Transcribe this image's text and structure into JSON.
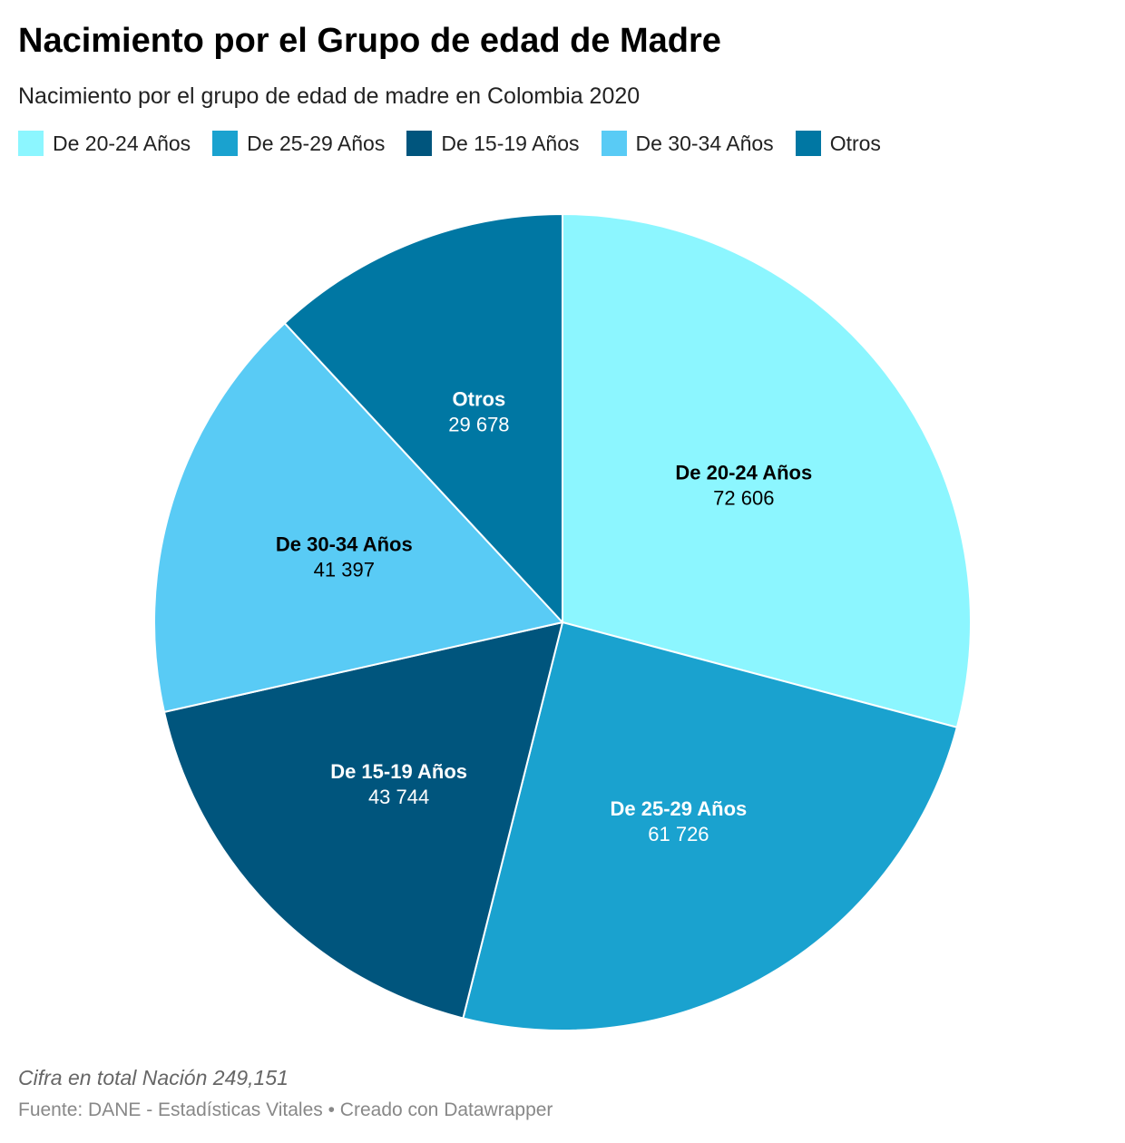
{
  "title": "Nacimiento por el Grupo de edad de Madre",
  "subtitle": "Nacimiento por el grupo de edad de madre en Colombia 2020",
  "note": "Cifra en total Nación 249,151",
  "footer": {
    "source": "Fuente: DANE - Estadísticas Vitales",
    "separator": " • ",
    "credit": "Creado con Datawrapper"
  },
  "chart_data": {
    "type": "pie",
    "title": "Nacimiento por el Grupo de edad de Madre",
    "subtitle": "Nacimiento por el grupo de edad de madre en Colombia 2020",
    "legend": "top",
    "categories": [
      "De 20-24 Años",
      "De 25-29 Años",
      "De 15-19 Años",
      "De 30-34 Años",
      "Otros"
    ],
    "values": [
      72606,
      61726,
      43744,
      41397,
      29678
    ],
    "value_labels": [
      "72 606",
      "61 726",
      "43 744",
      "41 397",
      "29 678"
    ],
    "colors": [
      "#8cf6ff",
      "#1aa2cf",
      "#00557d",
      "#59cbf5",
      "#0077a3"
    ],
    "label_colors": [
      "#000000",
      "#ffffff",
      "#ffffff",
      "#000000",
      "#ffffff"
    ]
  }
}
